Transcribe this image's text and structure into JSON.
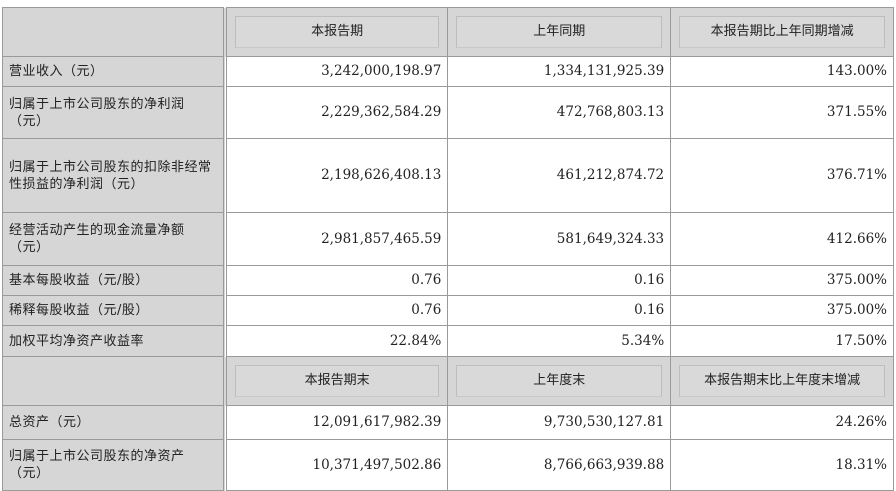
{
  "header1": [
    "本报告期",
    "上年同期",
    "本报告期比上年同期增减"
  ],
  "rows1": [
    {
      "label": "营业收入（元）",
      "values": [
        "3,242,000,198.97",
        "1,334,131,925.39",
        "143.00%"
      ]
    },
    {
      "label": "归属于上市公司股东的净利润（元）",
      "values": [
        "2,229,362,584.29",
        "472,768,803.13",
        "371.55%"
      ]
    },
    {
      "label": "归属于上市公司股东的扣除非经常性损益的净利润（元）",
      "values": [
        "2,198,626,408.13",
        "461,212,874.72",
        "376.71%"
      ]
    },
    {
      "label": "经营活动产生的现金流量净额（元）",
      "values": [
        "2,981,857,465.59",
        "581,649,324.33",
        "412.66%"
      ]
    },
    {
      "label": "基本每股收益（元/股）",
      "values": [
        "0.76",
        "0.16",
        "375.00%"
      ]
    },
    {
      "label": "稀释每股收益（元/股）",
      "values": [
        "0.76",
        "0.16",
        "375.00%"
      ]
    },
    {
      "label": "加权平均净资产收益率",
      "values": [
        "22.84%",
        "5.34%",
        "17.50%"
      ]
    }
  ],
  "header2": [
    "本报告期末",
    "上年度末",
    "本报告期末比上年度末增减"
  ],
  "rows2": [
    {
      "label": "总资产（元）",
      "values": [
        "12,091,617,982.39",
        "9,730,530,127.81",
        "24.26%"
      ]
    },
    {
      "label": "归属于上市公司股东的净资产（元）",
      "values": [
        "10,371,497,502.86",
        "8,766,663,939.88",
        "18.31%"
      ]
    }
  ]
}
